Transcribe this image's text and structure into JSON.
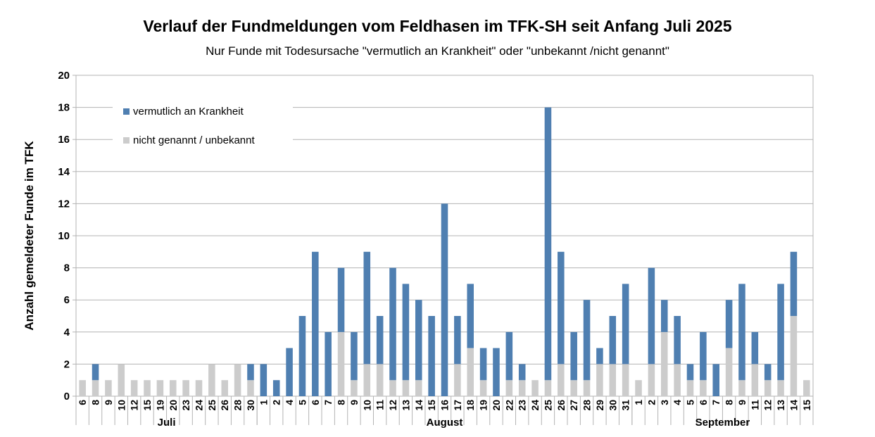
{
  "chart_data": {
    "type": "bar",
    "stacked": true,
    "title": "Verlauf der Fundmeldungen vom Feldhasen im TFK-SH seit Anfang Juli 2025",
    "subtitle": "Nur Funde mit Todesursache \"vermutlich an Krankheit\" oder \"unbekannt /nicht genannt\"",
    "xlabel": "",
    "ylabel": "Anzahl gemeldeter Funde im TFK",
    "ylim": [
      0,
      20
    ],
    "yticks": [
      "0",
      "2",
      "4",
      "6",
      "8",
      "10",
      "12",
      "14",
      "16",
      "18",
      "20"
    ],
    "grid": true,
    "legend_position": "top-left",
    "groups": [
      {
        "label": "Juli",
        "categories": [
          "6",
          "8",
          "9",
          "10",
          "12",
          "15",
          "19",
          "20",
          "23",
          "24",
          "25",
          "26",
          "28",
          "30"
        ]
      },
      {
        "label": "August",
        "categories": [
          "1",
          "2",
          "4",
          "5",
          "6",
          "7",
          "8",
          "9",
          "10",
          "11",
          "12",
          "13",
          "14",
          "15",
          "16",
          "17",
          "18",
          "19",
          "20",
          "22",
          "23",
          "24",
          "25",
          "26",
          "27",
          "28",
          "29",
          "30",
          "31"
        ]
      },
      {
        "label": "September",
        "categories": [
          "1",
          "2",
          "3",
          "4",
          "5",
          "6",
          "7",
          "8",
          "9",
          "11",
          "12",
          "13",
          "14",
          "15"
        ]
      }
    ],
    "series": [
      {
        "name": "nicht genannt / unbekannt",
        "color": "#cccccc",
        "values": [
          1,
          1,
          1,
          2,
          1,
          1,
          1,
          1,
          1,
          1,
          2,
          1,
          2,
          1,
          0,
          0,
          0,
          0,
          0,
          0,
          4,
          1,
          2,
          2,
          1,
          1,
          1,
          0,
          0,
          2,
          3,
          1,
          0,
          1,
          1,
          1,
          1,
          2,
          1,
          1,
          2,
          2,
          2,
          1,
          2,
          4,
          2,
          1,
          1,
          0,
          3,
          1,
          2,
          1,
          1,
          5,
          1
        ]
      },
      {
        "name": "vermutlich an Krankheit",
        "color": "#4f7fb1",
        "values": [
          0,
          1,
          0,
          0,
          0,
          0,
          0,
          0,
          0,
          0,
          0,
          0,
          0,
          1,
          2,
          1,
          3,
          5,
          9,
          4,
          4,
          3,
          7,
          3,
          7,
          6,
          5,
          5,
          12,
          3,
          4,
          2,
          3,
          3,
          1,
          0,
          17,
          7,
          3,
          5,
          1,
          3,
          5,
          0,
          6,
          2,
          3,
          1,
          3,
          2,
          3,
          6,
          2,
          1,
          6,
          4,
          0
        ]
      }
    ],
    "legend_order": [
      "vermutlich an Krankheit",
      "nicht genannt / unbekannt"
    ]
  }
}
